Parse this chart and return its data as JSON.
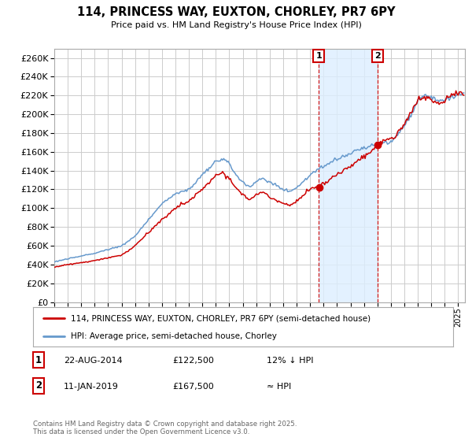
{
  "title": "114, PRINCESS WAY, EUXTON, CHORLEY, PR7 6PY",
  "subtitle": "Price paid vs. HM Land Registry's House Price Index (HPI)",
  "ylabel_ticks": [
    0,
    20000,
    40000,
    60000,
    80000,
    100000,
    120000,
    140000,
    160000,
    180000,
    200000,
    220000,
    240000,
    260000
  ],
  "ylim": [
    0,
    270000
  ],
  "xlim_start": 1995.0,
  "xlim_end": 2025.5,
  "red_line_label": "114, PRINCESS WAY, EUXTON, CHORLEY, PR7 6PY (semi-detached house)",
  "blue_line_label": "HPI: Average price, semi-detached house, Chorley",
  "transaction1_date": "22-AUG-2014",
  "transaction1_price": "£122,500",
  "transaction1_note": "12% ↓ HPI",
  "transaction1_x": 2014.64,
  "transaction1_y": 122500,
  "transaction2_date": "11-JAN-2019",
  "transaction2_price": "£167,500",
  "transaction2_note": "≈ HPI",
  "transaction2_x": 2019.03,
  "transaction2_y": 167500,
  "vline1_x": 2014.64,
  "vline2_x": 2019.03,
  "red_color": "#cc0000",
  "blue_color": "#6699cc",
  "shade_color": "#ddeeff",
  "marker_box_color": "#cc0000",
  "grid_color": "#cccccc",
  "background_color": "#ffffff",
  "footnote": "Contains HM Land Registry data © Crown copyright and database right 2025.\nThis data is licensed under the Open Government Licence v3.0."
}
